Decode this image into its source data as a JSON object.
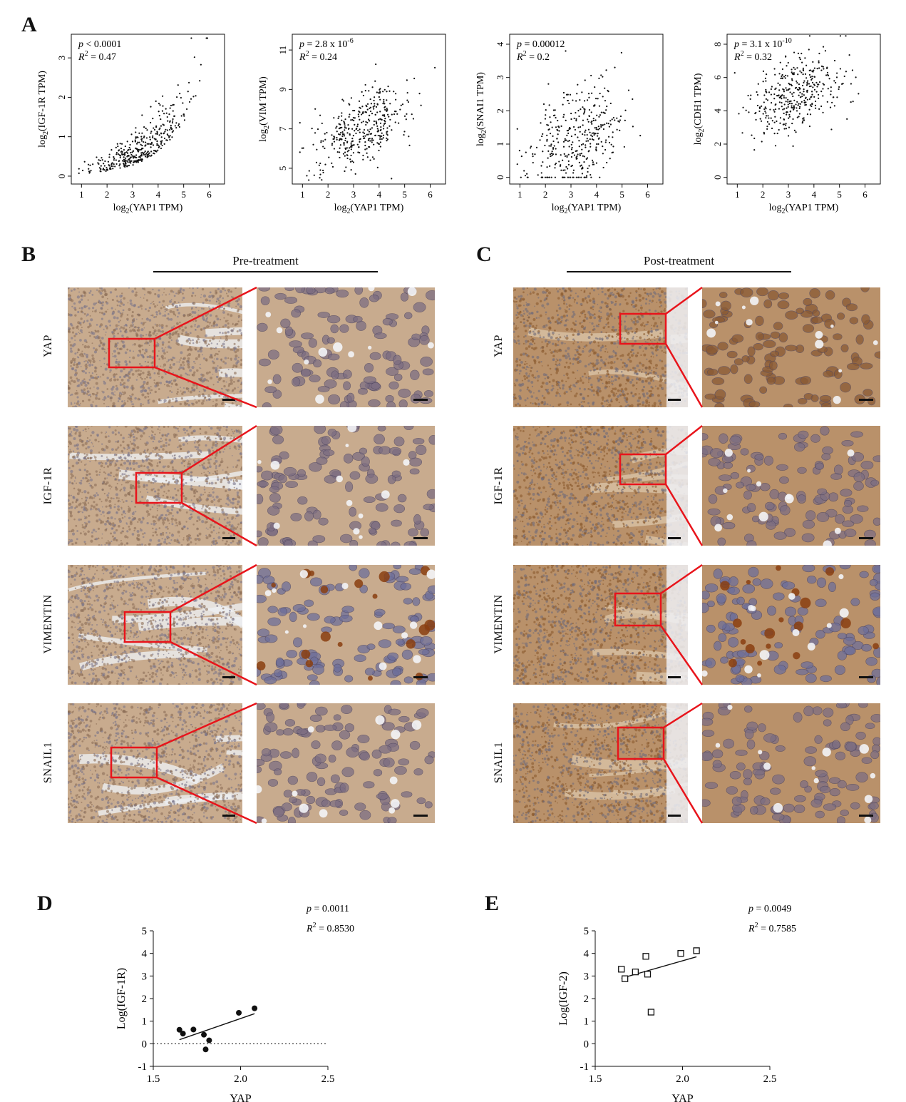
{
  "panel_labels": {
    "A": "A",
    "B": "B",
    "C": "C",
    "D": "D",
    "E": "E"
  },
  "section_titles": {
    "pre": "Pre-treatment",
    "post": "Post-treatment"
  },
  "row_labels": [
    "YAP",
    "IGF-1R",
    "VIMENTIN",
    "SNAIL1"
  ],
  "colors": {
    "ink": "#111111",
    "red_box": "#e8141b",
    "ihc_pre_bg": "#c8ab8e",
    "ihc_post_bg": "#b9916a"
  },
  "chart_data": [
    {
      "type": "scatter",
      "panel": "A",
      "stats": {
        "p": "p < 0.0001",
        "r2": "R² = 0.47"
      },
      "xlabel": "log2(YAP1 TPM)",
      "ylabel": "log2(IGF-1R TPM)",
      "xticks": [
        1,
        2,
        3,
        4,
        5,
        6
      ],
      "yticks": [
        0,
        1,
        2,
        3
      ],
      "xlim": [
        0.6,
        6.6
      ],
      "ylim": [
        -0.2,
        3.6
      ],
      "trend": {
        "slope": 0.35,
        "intercept": -0.8,
        "spread": 0.35,
        "ymin": 0.0
      },
      "n_points": 380
    },
    {
      "type": "scatter",
      "panel": "A",
      "stats": {
        "p": "p = 2.8 x 10-6",
        "r2": "R² = 0.24"
      },
      "xlabel": "log2(YAP1 TPM)",
      "ylabel": "log2(VIM TPM)",
      "xticks": [
        1,
        2,
        3,
        4,
        5,
        6
      ],
      "yticks": [
        5,
        7,
        9,
        11
      ],
      "xlim": [
        0.6,
        6.6
      ],
      "ylim": [
        4.2,
        11.8
      ],
      "trend": {
        "slope": 0.55,
        "intercept": 5.2,
        "spread": 0.9,
        "ymin": 4.4
      },
      "n_points": 380
    },
    {
      "type": "scatter",
      "panel": "A",
      "stats": {
        "p": "p = 0.00012",
        "r2": "R² = 0.2"
      },
      "xlabel": "log2(YAP1 TPM)",
      "ylabel": "log2(SNAI1 TPM)",
      "xticks": [
        1,
        2,
        3,
        4,
        5,
        6
      ],
      "yticks": [
        0,
        1,
        2,
        3,
        4
      ],
      "xlim": [
        0.6,
        6.6
      ],
      "ylim": [
        -0.2,
        4.3
      ],
      "trend": {
        "slope": 0.35,
        "intercept": 0.05,
        "spread": 0.8,
        "ymin": 0.0
      },
      "n_points": 380
    },
    {
      "type": "scatter",
      "panel": "A",
      "stats": {
        "p": "p = 3.1 x 10-10",
        "r2": "R² = 0.32"
      },
      "xlabel": "log2(YAP1 TPM)",
      "ylabel": "log2(CDH1 TPM)",
      "xticks": [
        1,
        2,
        3,
        4,
        5,
        6
      ],
      "yticks": [
        0,
        2,
        4,
        6,
        8
      ],
      "xlim": [
        0.6,
        6.6
      ],
      "ylim": [
        -0.4,
        8.6
      ],
      "trend": {
        "slope": 0.55,
        "intercept": 3.2,
        "spread": 1.2,
        "ymin": 0.0
      },
      "n_points": 380
    },
    {
      "type": "scatter",
      "panel": "D",
      "stats": {
        "p": "p = 0.0011",
        "r2": "R² = 0.8530"
      },
      "xlabel": "YAP",
      "ylabel": "Log(IGF-1R)",
      "xticks": [
        1.5,
        2.0,
        2.5
      ],
      "yticks": [
        -1,
        0,
        1,
        2,
        3,
        4,
        5
      ],
      "xlim": [
        1.5,
        2.5
      ],
      "ylim": [
        -1,
        5
      ],
      "marker": "filled-circle",
      "x": [
        1.65,
        1.67,
        1.73,
        1.79,
        1.8,
        1.82,
        1.99,
        2.08
      ],
      "y": [
        0.62,
        0.45,
        0.63,
        0.4,
        -0.25,
        0.15,
        1.37,
        1.57
      ],
      "fit": {
        "x": [
          1.65,
          2.08
        ],
        "y": [
          0.18,
          1.33
        ]
      },
      "zero_line": true
    },
    {
      "type": "scatter",
      "panel": "E",
      "stats": {
        "p": "p = 0.0049",
        "r2": "R² = 0.7585"
      },
      "xlabel": "YAP",
      "ylabel": "Log(IGF-2)",
      "xticks": [
        1.5,
        2.0,
        2.5
      ],
      "yticks": [
        -1,
        0,
        1,
        2,
        3,
        4,
        5
      ],
      "xlim": [
        1.5,
        2.5
      ],
      "ylim": [
        -1,
        5
      ],
      "marker": "open-square",
      "x": [
        1.65,
        1.67,
        1.73,
        1.79,
        1.8,
        1.82,
        1.99,
        2.08
      ],
      "y": [
        3.3,
        2.88,
        3.18,
        3.87,
        3.08,
        1.4,
        4.0,
        4.12
      ],
      "fit": {
        "x": [
          1.65,
          2.08
        ],
        "y": [
          2.9,
          3.85
        ]
      },
      "zero_line": false
    }
  ]
}
